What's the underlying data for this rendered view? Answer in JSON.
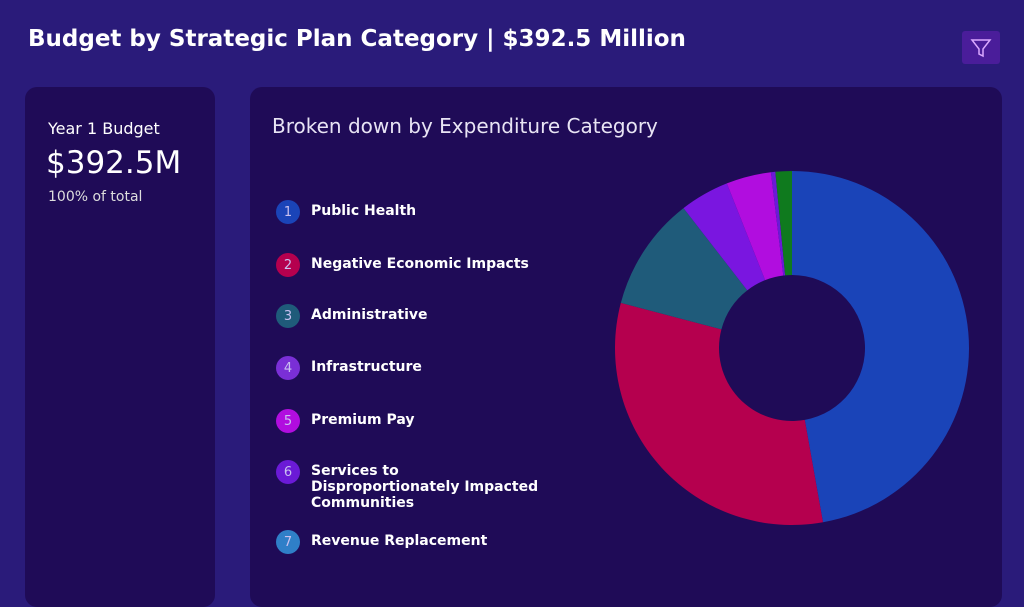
{
  "header": {
    "title": "Budget by Strategic Plan Category | $392.5 Million"
  },
  "summary": {
    "label": "Year 1 Budget",
    "value": "$392.5M",
    "note": "100% of total"
  },
  "chart_data": {
    "type": "donut",
    "title": "Broken down by Expenditure Category",
    "markers": [
      "1",
      "2",
      "3",
      "4",
      "5",
      "6",
      "7"
    ],
    "categories": [
      "Public Health",
      "Negative Economic Impacts",
      "Administrative",
      "Infrastructure",
      "Premium Pay",
      "Services to Disproportionately Impacted Communities",
      "Revenue Replacement"
    ],
    "values": [
      47.2,
      31.9,
      10.4,
      4.5,
      4.1,
      0.4,
      1.5
    ],
    "colors": [
      "#1a44b8",
      "#b5004e",
      "#1f5b7a",
      "#7a16e0",
      "#b10ddf",
      "#6b1ad6",
      "#0f7a1e"
    ],
    "legend_colors": [
      "#1a44b8",
      "#b5004e",
      "#1f5b7a",
      "#7a2fd6",
      "#b10ddf",
      "#6b1ad6",
      "#2f7fc8"
    ]
  }
}
